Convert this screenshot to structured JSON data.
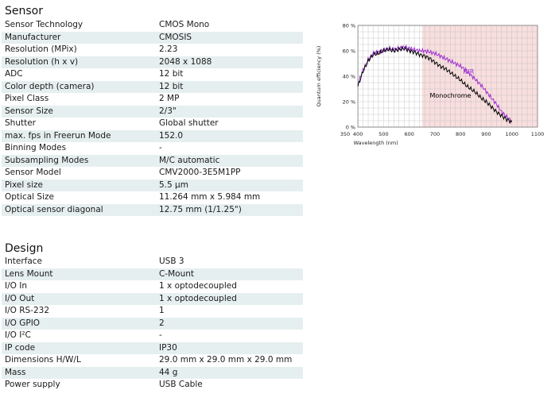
{
  "sensor": {
    "title": "Sensor",
    "rows": [
      {
        "key": "Sensor Technology",
        "value": "CMOS Mono"
      },
      {
        "key": "Manufacturer",
        "value": "CMOSIS"
      },
      {
        "key": "Resolution (MPix)",
        "value": "2.23"
      },
      {
        "key": "Resolution (h x v)",
        "value": "2048 x 1088"
      },
      {
        "key": "ADC",
        "value": "12 bit"
      },
      {
        "key": "Color depth (camera)",
        "value": "12 bit"
      },
      {
        "key": "Pixel Class",
        "value": "2 MP"
      },
      {
        "key": "Sensor Size",
        "value": "2/3\""
      },
      {
        "key": "Shutter",
        "value": "Global shutter"
      },
      {
        "key": "max. fps in Freerun Mode",
        "value": "152.0"
      },
      {
        "key": "Binning Modes",
        "value": "-"
      },
      {
        "key": "Subsampling Modes",
        "value": "M/C automatic"
      },
      {
        "key": "Sensor Model",
        "value": "CMV2000-3E5M1PP"
      },
      {
        "key": "Pixel size",
        "value": "5.5 µm"
      },
      {
        "key": "Optical Size",
        "value": "11.264 mm x 5.984 mm"
      },
      {
        "key": "Optical sensor diagonal",
        "value": "12.75 mm (1/1.25\")"
      }
    ]
  },
  "design": {
    "title": "Design",
    "rows": [
      {
        "key": "Interface",
        "value": "USB 3"
      },
      {
        "key": "Lens Mount",
        "value": "C-Mount"
      },
      {
        "key": "I/O In",
        "value": "1 x optodecoupled"
      },
      {
        "key": "I/O Out",
        "value": "1 x optodecoupled"
      },
      {
        "key": "I/O RS-232",
        "value": "1"
      },
      {
        "key": "I/O GPIO",
        "value": "2"
      },
      {
        "key": "I/O I²C",
        "value": "-"
      },
      {
        "key": "IP code",
        "value": "IP30"
      },
      {
        "key": "Dimensions H/W/L",
        "value": "29.0 mm x 29.0 mm x 29.0 mm"
      },
      {
        "key": "Mass",
        "value": "44 g"
      },
      {
        "key": "Power supply",
        "value": "USB Cable"
      }
    ]
  },
  "chart_data": {
    "type": "line",
    "xlabel": "Wavelength (nm)",
    "ylabel": "Quantum efficiency (%)",
    "xlim": [
      350,
      1100
    ],
    "ylim": [
      0,
      80
    ],
    "x_ticks": [
      "350",
      "400",
      "500",
      "600",
      "700",
      "800",
      "900",
      "1000",
      "1100"
    ],
    "y_ticks": [
      "0 %",
      "20 %",
      "40 %",
      "60 %",
      "80 %"
    ],
    "grid": true,
    "highlight_region": {
      "x_from": 650,
      "x_to": 1100,
      "color": "#f9dede"
    },
    "series": [
      {
        "name": "Monochrome",
        "color": "#000000",
        "x": [
          400,
          420,
          440,
          460,
          480,
          500,
          520,
          540,
          560,
          580,
          600,
          620,
          640,
          660,
          680,
          700,
          720,
          740,
          760,
          780,
          800,
          820,
          840,
          860,
          880,
          900,
          920,
          940,
          960,
          980,
          1000
        ],
        "y": [
          32,
          44,
          52,
          57,
          58,
          60,
          61,
          60,
          61,
          62,
          60,
          59,
          57,
          56,
          54,
          51,
          48,
          46,
          43,
          40,
          37,
          33,
          30,
          27,
          23,
          20,
          16,
          12,
          9,
          6,
          4
        ]
      },
      {
        "name": "NIR",
        "color": "#9b2fd0",
        "x": [
          400,
          420,
          440,
          460,
          480,
          500,
          520,
          540,
          560,
          580,
          600,
          620,
          640,
          660,
          680,
          700,
          720,
          740,
          760,
          780,
          800,
          820,
          840,
          860,
          880,
          900,
          920,
          940,
          960,
          980,
          1000
        ],
        "y": [
          34,
          45,
          53,
          58,
          59,
          60,
          62,
          61,
          62,
          63,
          62,
          61,
          60,
          60,
          59,
          58,
          56,
          54,
          52,
          50,
          48,
          45,
          41,
          37,
          33,
          28,
          23,
          18,
          12,
          8,
          5
        ]
      }
    ]
  }
}
